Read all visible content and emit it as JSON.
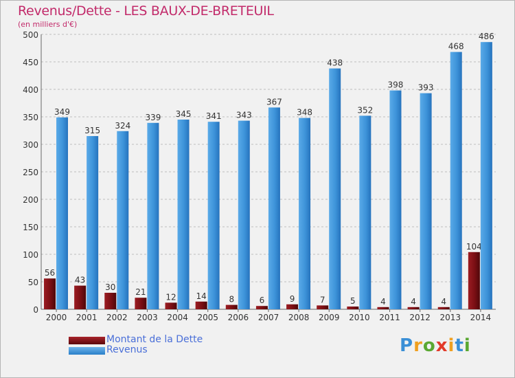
{
  "chart_data": {
    "type": "bar",
    "title": "Revenus/Dette - LES BAUX-DE-BRETEUIL",
    "subtitle": "(en milliers d'€)",
    "categories": [
      "2000",
      "2001",
      "2002",
      "2003",
      "2004",
      "2005",
      "2006",
      "2007",
      "2008",
      "2009",
      "2010",
      "2011",
      "2012",
      "2013",
      "2014"
    ],
    "series": [
      {
        "name": "Montant de la Dette",
        "color": "#7a0f14",
        "values": [
          56,
          43,
          30,
          21,
          12,
          14,
          8,
          6,
          9,
          7,
          5,
          4,
          4,
          4,
          104
        ]
      },
      {
        "name": "Revenus",
        "color": "#3d93d9",
        "values": [
          349,
          315,
          324,
          339,
          345,
          341,
          343,
          367,
          348,
          438,
          352,
          398,
          393,
          468,
          486
        ]
      }
    ],
    "ylim": [
      0,
      500
    ],
    "yticks": [
      0,
      50,
      100,
      150,
      200,
      250,
      300,
      350,
      400,
      450,
      500
    ],
    "grid": true,
    "legend": "bottom-left"
  },
  "legend": {
    "debt_label": "Montant de la Dette",
    "revenue_label": "Revenus"
  },
  "logo": {
    "text": "Proxiti",
    "colors": [
      "#3a8fd6",
      "#f0a020",
      "#5aa832",
      "#e23a2a",
      "#f0a020",
      "#3a8fd6",
      "#5aa832"
    ]
  }
}
